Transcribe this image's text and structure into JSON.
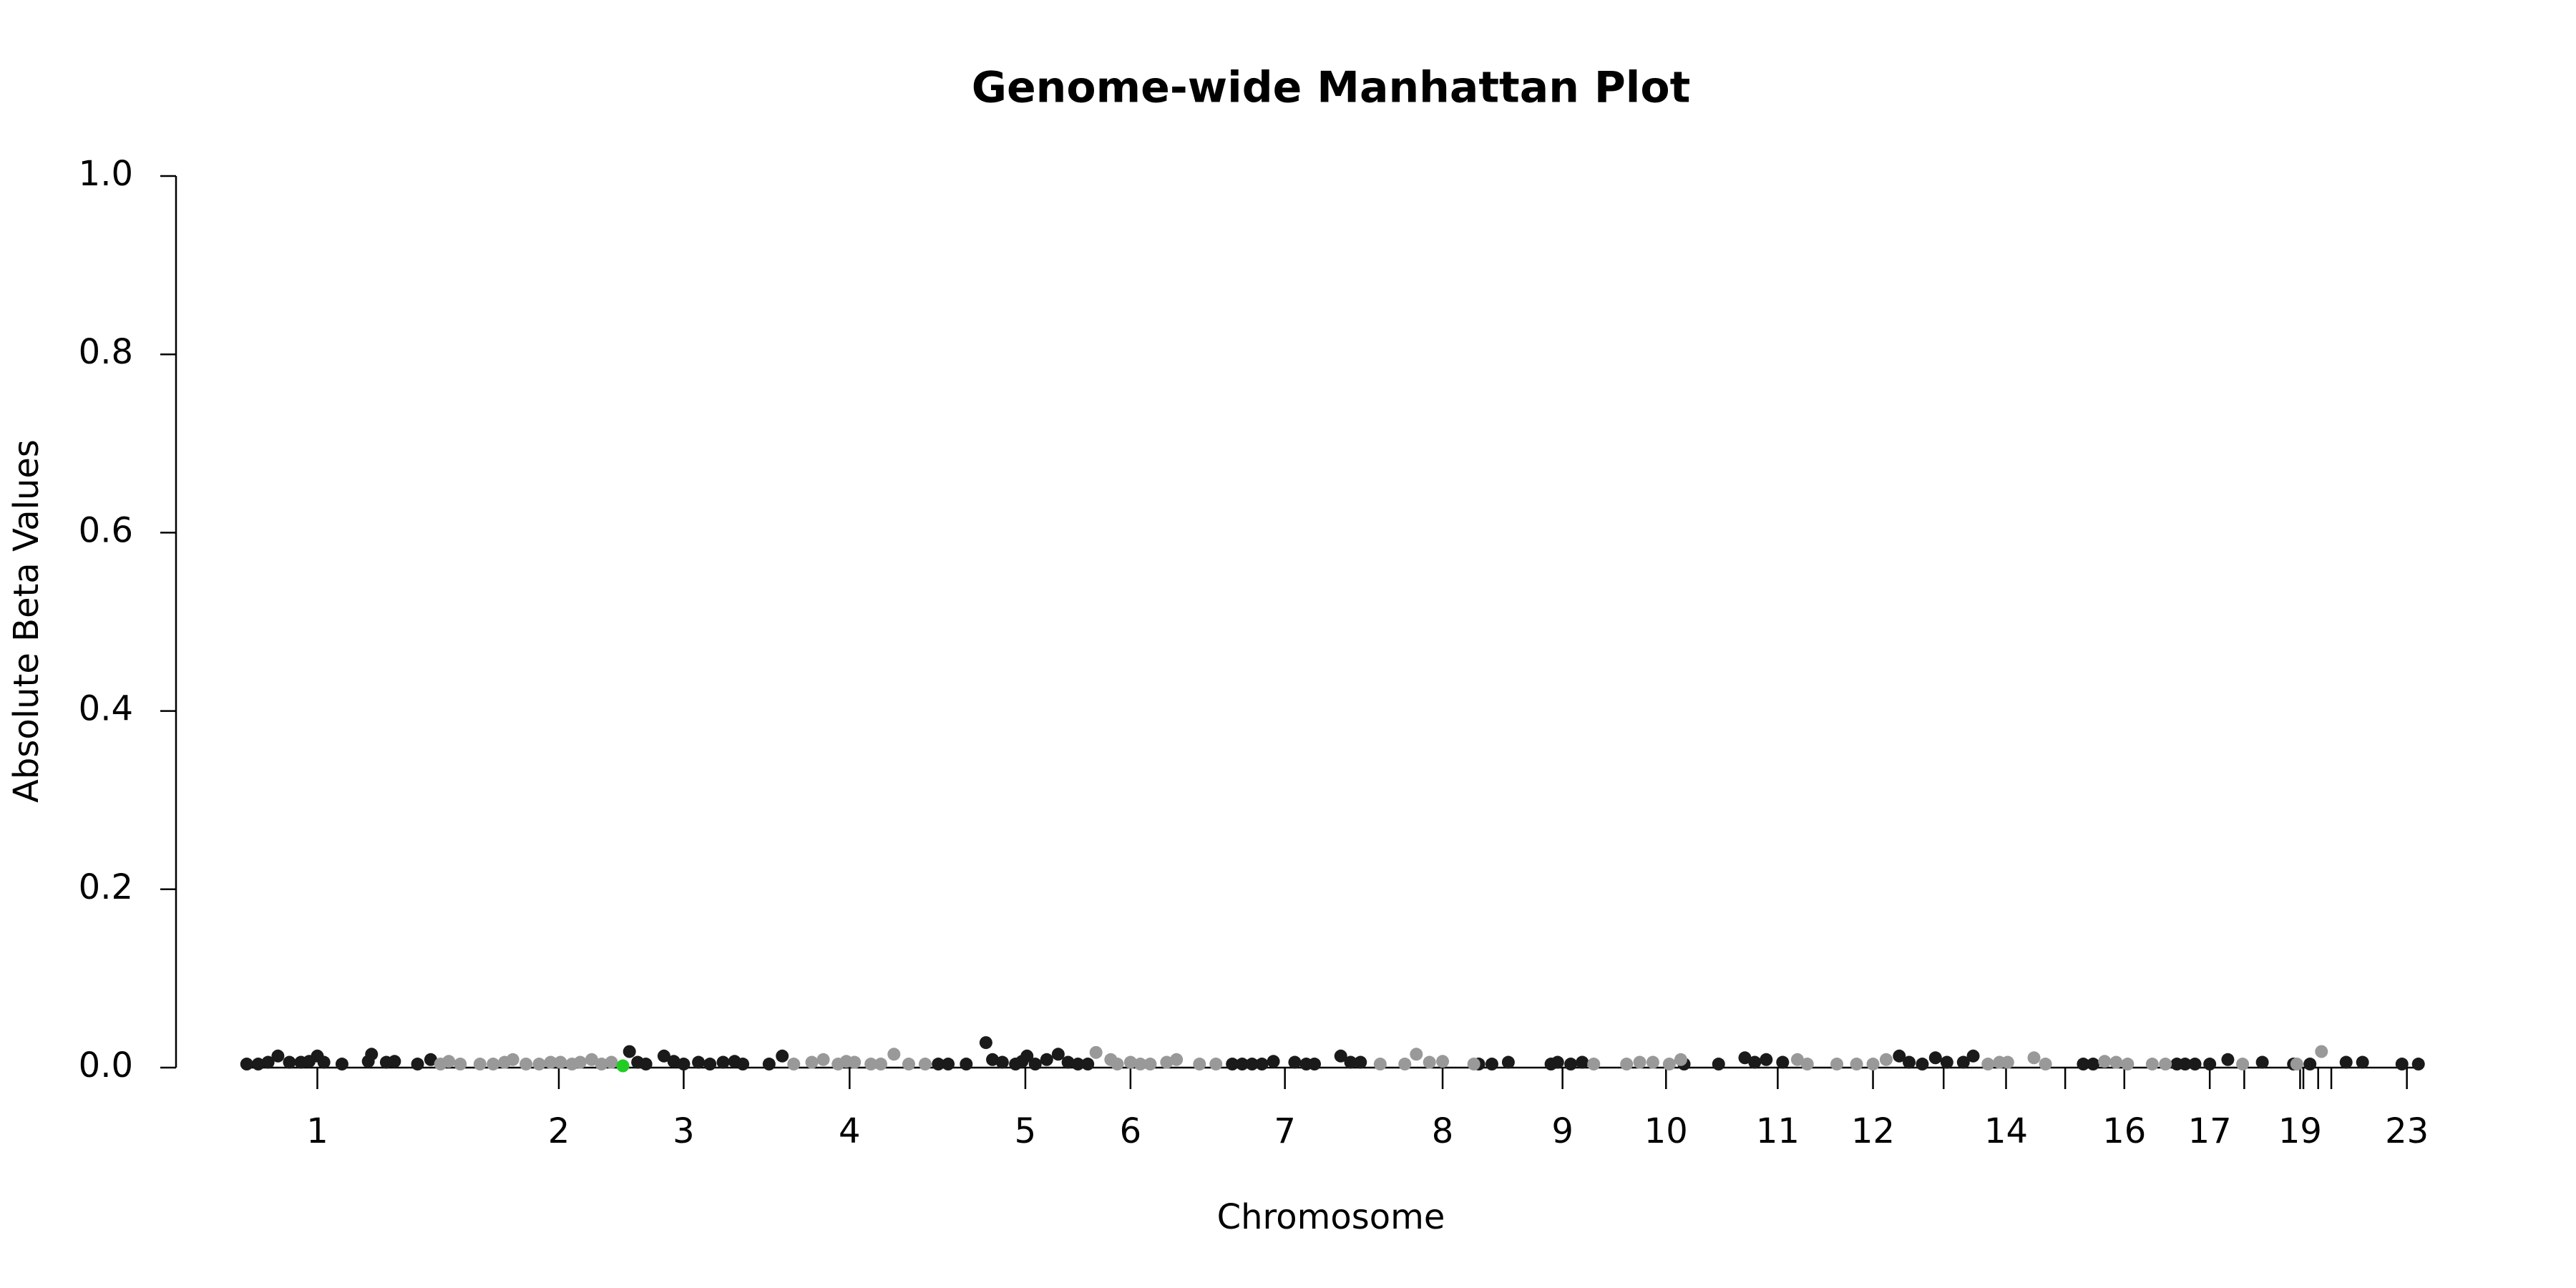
{
  "chart_data": {
    "type": "scatter",
    "title": "Genome-wide Manhattan Plot",
    "xlabel": "Chromosome",
    "ylabel": "Absolute Beta Values",
    "xlim": [
      0,
      1400
    ],
    "ylim": [
      0,
      1
    ],
    "yticks": [
      {
        "value": 0,
        "label": "0.0"
      },
      {
        "value": 0.2,
        "label": "0.2"
      },
      {
        "value": 0.4,
        "label": "0.4"
      },
      {
        "value": 0.6,
        "label": "0.6"
      },
      {
        "value": 0.8,
        "label": "0.8"
      },
      {
        "value": 1,
        "label": "1.0"
      }
    ],
    "xticks": [
      {
        "value": 93,
        "label": "1"
      },
      {
        "value": 240,
        "label": "2"
      },
      {
        "value": 316,
        "label": "3"
      },
      {
        "value": 417,
        "label": "4"
      },
      {
        "value": 524,
        "label": "5"
      },
      {
        "value": 588,
        "label": "6"
      },
      {
        "value": 682,
        "label": "7"
      },
      {
        "value": 778,
        "label": "8"
      },
      {
        "value": 851,
        "label": "9"
      },
      {
        "value": 914,
        "label": "10"
      },
      {
        "value": 982,
        "label": "11"
      },
      {
        "value": 1040,
        "label": "12"
      },
      {
        "value": 1083,
        "label": null
      },
      {
        "value": 1121,
        "label": "14"
      },
      {
        "value": 1157,
        "label": null
      },
      {
        "value": 1193,
        "label": "16"
      },
      {
        "value": 1245,
        "label": "17"
      },
      {
        "value": 1266,
        "label": null
      },
      {
        "value": 1300,
        "label": "19"
      },
      {
        "value": 1302,
        "label": null
      },
      {
        "value": 1311,
        "label": null
      },
      {
        "value": 1319,
        "label": null
      },
      {
        "value": 1365,
        "label": "23"
      }
    ],
    "series": [
      {
        "color": "#1a1a1a",
        "x": [
          50,
          57,
          63,
          69,
          76,
          83,
          88,
          93,
          97,
          108,
          124,
          126,
          135,
          140,
          154,
          162,
          283,
          288,
          293,
          304,
          310,
          316,
          325,
          332,
          340,
          347,
          352,
          368,
          376,
          471,
          477,
          488,
          500,
          504,
          510,
          518,
          522,
          525,
          530,
          537,
          544,
          550,
          556,
          562,
          650,
          656,
          662,
          668,
          675,
          688,
          695,
          700,
          716,
          722,
          728,
          800,
          808,
          818,
          844,
          848,
          856,
          863,
          925,
          946,
          962,
          968,
          975,
          985,
          1056,
          1062,
          1070,
          1078,
          1085,
          1095,
          1101,
          1168,
          1174,
          1225,
          1230,
          1236,
          1245,
          1256,
          1277,
          1296,
          1306,
          1328,
          1338,
          1362,
          1372
        ],
        "values": [
          0.004,
          0.004,
          0.006,
          0.013,
          0.006,
          0.006,
          0.007,
          0.013,
          0.006,
          0.004,
          0.007,
          0.015,
          0.006,
          0.007,
          0.004,
          0.009,
          0.018,
          0.006,
          0.004,
          0.013,
          0.007,
          0.004,
          0.006,
          0.004,
          0.006,
          0.007,
          0.004,
          0.004,
          0.013,
          0.004,
          0.004,
          0.004,
          0.028,
          0.009,
          0.006,
          0.004,
          0.007,
          0.013,
          0.004,
          0.009,
          0.015,
          0.006,
          0.004,
          0.004,
          0.004,
          0.004,
          0.004,
          0.004,
          0.007,
          0.006,
          0.004,
          0.004,
          0.013,
          0.006,
          0.006,
          0.004,
          0.004,
          0.006,
          0.004,
          0.006,
          0.004,
          0.006,
          0.004,
          0.004,
          0.011,
          0.006,
          0.009,
          0.006,
          0.013,
          0.006,
          0.004,
          0.011,
          0.006,
          0.006,
          0.013,
          0.004,
          0.004,
          0.004,
          0.004,
          0.004,
          0.004,
          0.009,
          0.006,
          0.004,
          0.004,
          0.006,
          0.006,
          0.004,
          0.004
        ]
      },
      {
        "color": "#999999",
        "x": [
          168,
          173,
          180,
          192,
          200,
          207,
          212,
          220,
          228,
          235,
          241,
          248,
          253,
          260,
          266,
          272,
          383,
          394,
          401,
          410,
          415,
          420,
          430,
          436,
          444,
          453,
          463,
          567,
          576,
          580,
          588,
          594,
          600,
          610,
          616,
          630,
          640,
          740,
          755,
          762,
          770,
          778,
          797,
          870,
          890,
          898,
          906,
          916,
          923,
          994,
          1000,
          1018,
          1030,
          1040,
          1048,
          1110,
          1117,
          1122,
          1138,
          1145,
          1181,
          1188,
          1195,
          1210,
          1218,
          1265,
          1313,
          1298
        ],
        "values": [
          0.004,
          0.007,
          0.004,
          0.004,
          0.004,
          0.006,
          0.009,
          0.004,
          0.004,
          0.006,
          0.006,
          0.004,
          0.006,
          0.009,
          0.004,
          0.006,
          0.004,
          0.006,
          0.009,
          0.004,
          0.007,
          0.006,
          0.004,
          0.004,
          0.015,
          0.004,
          0.004,
          0.017,
          0.009,
          0.004,
          0.006,
          0.004,
          0.004,
          0.006,
          0.009,
          0.004,
          0.004,
          0.004,
          0.004,
          0.015,
          0.006,
          0.007,
          0.004,
          0.004,
          0.004,
          0.006,
          0.006,
          0.004,
          0.009,
          0.009,
          0.004,
          0.004,
          0.004,
          0.004,
          0.009,
          0.004,
          0.006,
          0.006,
          0.011,
          0.004,
          0.007,
          0.006,
          0.004,
          0.004,
          0.004,
          0.004,
          0.018,
          0.004
        ]
      },
      {
        "color": "#22cc22",
        "x": [
          279
        ],
        "values": [
          0.002
        ]
      }
    ]
  }
}
